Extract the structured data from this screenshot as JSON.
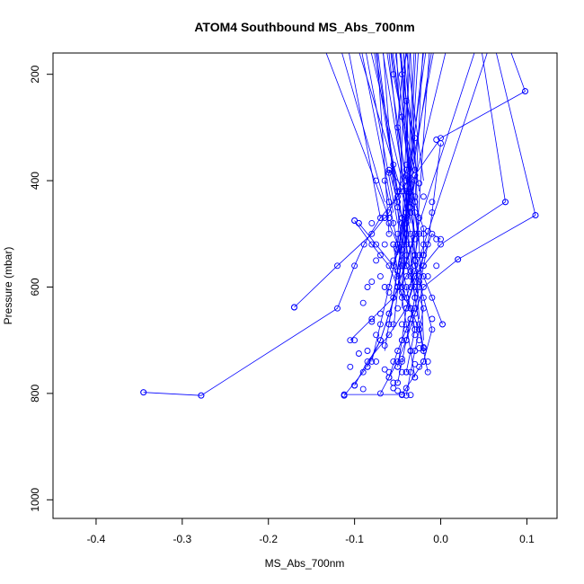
{
  "chart_data": {
    "type": "line",
    "title": "ATOM4 Southbound MS_Abs_700nm",
    "xlabel": "MS_Abs_700nm",
    "ylabel": "Pressure (mbar)",
    "xlim": [
      -0.45,
      0.135
    ],
    "ylim": [
      1035,
      160
    ],
    "y_inverted": true,
    "x_ticks": [
      -0.4,
      -0.3,
      -0.2,
      -0.1,
      0.0,
      0.1
    ],
    "x_tick_labels": [
      "-0.4",
      "-0.3",
      "-0.2",
      "-0.1",
      "0.0",
      "0.1"
    ],
    "y_ticks": [
      200,
      400,
      600,
      800,
      1000
    ],
    "y_tick_labels": [
      "200",
      "400",
      "600",
      "800",
      "1000"
    ],
    "grid": false,
    "series_color": "#0000ff",
    "series": [
      {
        "x": [
          -0.345,
          -0.278,
          -0.12,
          -0.1,
          -0.089,
          -0.07,
          -0.05,
          -0.03,
          -0.045,
          -0.055,
          -0.06,
          -0.08,
          -0.095,
          -0.11
        ],
        "y": [
          798,
          804,
          640,
          560,
          520,
          470,
          430,
          380,
          280,
          200,
          130,
          130,
          130,
          130
        ]
      },
      {
        "x": [
          -0.112,
          -0.09,
          -0.07,
          -0.06,
          -0.05,
          -0.04,
          -0.03,
          -0.04,
          -0.05,
          -0.045,
          -0.035
        ],
        "y": [
          804,
          760,
          700,
          650,
          600,
          550,
          500,
          400,
          300,
          200,
          130
        ]
      },
      {
        "x": [
          -0.17,
          -0.12,
          -0.08,
          -0.06,
          -0.05,
          -0.04,
          -0.03,
          -0.04,
          -0.05
        ],
        "y": [
          638,
          560,
          500,
          460,
          420,
          380,
          320,
          250,
          130
        ]
      },
      {
        "x": [
          0.11,
          0.02,
          -0.02,
          -0.03,
          -0.04,
          -0.05,
          -0.06,
          -0.07
        ],
        "y": [
          465,
          548,
          600,
          650,
          700,
          740,
          770,
          800
        ]
      },
      {
        "x": [
          0.075,
          0.0,
          -0.03,
          -0.04,
          -0.045,
          -0.05
        ],
        "y": [
          440,
          520,
          580,
          640,
          700,
          750
        ]
      },
      {
        "x": [
          0.098,
          0.0,
          -0.03,
          -0.04,
          -0.05,
          -0.06,
          -0.07,
          -0.08
        ],
        "y": [
          232,
          320,
          390,
          460,
          530,
          600,
          670,
          740
        ]
      },
      {
        "x": [
          -0.112,
          -0.045,
          -0.02,
          -0.01,
          -0.02,
          -0.03,
          -0.04,
          -0.05,
          -0.06
        ],
        "y": [
          802,
          802,
          740,
          680,
          620,
          560,
          500,
          440,
          380
        ]
      },
      {
        "x": [
          -0.1,
          -0.085,
          -0.06,
          -0.04,
          -0.03,
          -0.02,
          -0.02,
          -0.03,
          -0.04
        ],
        "y": [
          785,
          740,
          690,
          640,
          590,
          540,
          490,
          440,
          390
        ]
      },
      {
        "x": [
          -0.105,
          -0.08,
          -0.055,
          -0.04,
          -0.03,
          -0.025,
          -0.03,
          -0.04,
          -0.06
        ],
        "y": [
          700,
          660,
          620,
          580,
          540,
          500,
          460,
          420,
          380
        ]
      },
      {
        "x": [
          -0.1,
          -0.08,
          -0.06,
          -0.05,
          -0.035,
          -0.03,
          -0.035,
          -0.04
        ],
        "y": [
          475,
          520,
          560,
          600,
          640,
          680,
          720,
          760
        ]
      },
      {
        "x": [
          -0.095,
          -0.075,
          -0.055,
          -0.045,
          -0.035,
          -0.025,
          -0.02,
          -0.015
        ],
        "y": [
          480,
          520,
          560,
          600,
          640,
          680,
          720,
          760
        ]
      },
      {
        "x": [
          -0.04,
          -0.035,
          -0.03,
          -0.025,
          -0.02,
          -0.03,
          -0.04,
          -0.05,
          -0.06
        ],
        "y": [
          804,
          760,
          720,
          680,
          640,
          600,
          560,
          520,
          480
        ]
      },
      {
        "x": [
          -0.06,
          -0.05,
          -0.04,
          -0.03,
          -0.025,
          -0.02,
          -0.015,
          -0.01,
          0.0
        ],
        "y": [
          770,
          720,
          680,
          640,
          600,
          560,
          520,
          460,
          330
        ]
      },
      {
        "x": [
          -0.085,
          -0.07,
          -0.06,
          -0.05,
          -0.045,
          -0.04,
          -0.035,
          -0.03
        ],
        "y": [
          750,
          700,
          650,
          600,
          550,
          500,
          450,
          400
        ]
      },
      {
        "x": [
          -0.065,
          -0.06,
          -0.055,
          -0.05,
          -0.045,
          -0.04,
          -0.035,
          -0.03
        ],
        "y": [
          400,
          440,
          480,
          520,
          560,
          600,
          640,
          680
        ]
      },
      {
        "x": [
          -0.02,
          -0.025,
          -0.03,
          -0.035,
          -0.04,
          -0.045,
          -0.05,
          -0.055
        ],
        "y": [
          715,
          670,
          620,
          570,
          520,
          470,
          420,
          370
        ]
      },
      {
        "x": [
          -0.05,
          -0.045,
          -0.04,
          -0.035,
          -0.03,
          -0.025,
          -0.02,
          -0.01,
          0.0
        ],
        "y": [
          780,
          740,
          700,
          660,
          620,
          580,
          540,
          500,
          510
        ]
      },
      {
        "x": [
          0.002,
          -0.01,
          -0.02,
          -0.03,
          -0.035,
          -0.04
        ],
        "y": [
          670,
          620,
          580,
          540,
          500,
          460
        ]
      },
      {
        "x": [
          -0.06,
          -0.055,
          -0.05,
          -0.045,
          -0.04,
          -0.035
        ],
        "y": [
          670,
          620,
          570,
          520,
          470,
          420
        ]
      },
      {
        "x": [
          -0.03,
          -0.035,
          -0.04,
          -0.045,
          -0.05,
          -0.055
        ],
        "y": [
          770,
          720,
          670,
          620,
          570,
          520
        ]
      }
    ],
    "fan_lines_to_top": [
      [
        -0.06,
        470,
        -0.14,
        130
      ],
      [
        -0.05,
        430,
        -0.08,
        130
      ],
      [
        -0.04,
        400,
        -0.065,
        130
      ],
      [
        -0.035,
        380,
        -0.055,
        130
      ],
      [
        -0.03,
        360,
        -0.045,
        130
      ],
      [
        -0.045,
        500,
        -0.035,
        130
      ],
      [
        -0.04,
        520,
        -0.025,
        130
      ],
      [
        -0.05,
        540,
        -0.015,
        130
      ],
      [
        -0.055,
        560,
        -0.005,
        130
      ],
      [
        -0.06,
        600,
        0.01,
        130
      ],
      [
        -0.045,
        580,
        0.045,
        130
      ],
      [
        -0.04,
        620,
        0.06,
        130
      ],
      [
        -0.065,
        440,
        -0.12,
        130
      ],
      [
        -0.07,
        470,
        -0.11,
        130
      ],
      [
        -0.055,
        460,
        -0.095,
        130
      ],
      [
        -0.05,
        480,
        -0.09,
        130
      ],
      [
        -0.045,
        520,
        -0.075,
        130
      ],
      [
        -0.035,
        480,
        -0.07,
        130
      ],
      [
        -0.03,
        440,
        -0.06,
        130
      ],
      [
        -0.025,
        420,
        -0.05,
        130
      ],
      [
        -0.02,
        400,
        -0.042,
        130
      ],
      [
        -0.04,
        560,
        -0.038,
        130
      ],
      [
        -0.045,
        600,
        -0.03,
        130
      ],
      [
        -0.035,
        600,
        -0.02,
        130
      ],
      [
        -0.03,
        560,
        -0.012,
        130
      ],
      [
        -0.025,
        520,
        -0.058,
        130
      ],
      [
        -0.03,
        500,
        -0.085,
        130
      ],
      [
        -0.04,
        450,
        -0.1,
        130
      ],
      [
        -0.05,
        420,
        -0.078,
        130
      ],
      [
        -0.055,
        410,
        -0.068,
        130
      ],
      [
        -0.045,
        380,
        -0.052,
        130
      ],
      [
        -0.04,
        340,
        -0.048,
        130
      ],
      [
        -0.038,
        320,
        -0.044,
        130
      ],
      [
        0.075,
        440,
        0.045,
        130
      ],
      [
        0.11,
        465,
        0.06,
        130
      ],
      [
        0.098,
        232,
        0.075,
        130
      ],
      [
        -0.06,
        500,
        -0.075,
        130
      ],
      [
        -0.05,
        520,
        -0.04,
        130
      ],
      [
        -0.045,
        640,
        -0.028,
        130
      ],
      [
        -0.055,
        680,
        -0.018,
        130
      ],
      [
        -0.065,
        720,
        -0.008,
        130
      ],
      [
        -0.03,
        620,
        -0.062,
        130
      ],
      [
        -0.025,
        660,
        -0.047,
        130
      ],
      [
        -0.02,
        700,
        -0.036,
        130
      ]
    ],
    "extra_points": [
      [
        -0.345,
        798
      ],
      [
        -0.278,
        804
      ],
      [
        -0.17,
        638
      ],
      [
        0.11,
        465
      ],
      [
        0.075,
        440
      ],
      [
        0.098,
        232
      ],
      [
        0.02,
        548
      ],
      [
        0.002,
        670
      ],
      [
        -0.005,
        510
      ],
      [
        -0.005,
        323
      ],
      [
        -0.1,
        475
      ],
      [
        -0.095,
        480
      ],
      [
        -0.08,
        480
      ],
      [
        -0.075,
        400
      ],
      [
        -0.06,
        385
      ],
      [
        -0.065,
        470
      ],
      [
        -0.06,
        500
      ],
      [
        -0.065,
        520
      ],
      [
        -0.07,
        540
      ],
      [
        -0.07,
        580
      ],
      [
        -0.08,
        590
      ],
      [
        -0.075,
        550
      ],
      [
        -0.06,
        610
      ],
      [
        -0.06,
        670
      ],
      [
        -0.055,
        670
      ],
      [
        -0.08,
        665
      ],
      [
        -0.1,
        700
      ],
      [
        -0.085,
        720
      ],
      [
        -0.095,
        725
      ],
      [
        -0.105,
        750
      ],
      [
        -0.085,
        750
      ],
      [
        -0.09,
        792
      ],
      [
        -0.075,
        740
      ],
      [
        -0.06,
        770
      ],
      [
        -0.055,
        790
      ],
      [
        -0.05,
        795
      ],
      [
        -0.045,
        803
      ],
      [
        -0.035,
        803
      ],
      [
        -0.055,
        780
      ],
      [
        -0.04,
        760
      ],
      [
        -0.03,
        770
      ],
      [
        -0.03,
        745
      ],
      [
        -0.025,
        750
      ],
      [
        -0.02,
        740
      ],
      [
        -0.015,
        740
      ],
      [
        -0.025,
        715
      ],
      [
        -0.02,
        713
      ],
      [
        -0.03,
        690
      ],
      [
        -0.045,
        700
      ],
      [
        -0.045,
        670
      ],
      [
        -0.035,
        660
      ],
      [
        -0.01,
        660
      ],
      [
        -0.03,
        640
      ],
      [
        -0.04,
        620
      ],
      [
        -0.035,
        600
      ],
      [
        -0.025,
        590
      ],
      [
        -0.03,
        570
      ],
      [
        -0.02,
        560
      ],
      [
        -0.015,
        580
      ],
      [
        -0.005,
        560
      ],
      [
        -0.04,
        560
      ],
      [
        -0.045,
        530
      ],
      [
        -0.035,
        520
      ],
      [
        -0.03,
        510
      ],
      [
        -0.02,
        500
      ],
      [
        -0.015,
        495
      ],
      [
        -0.04,
        480
      ],
      [
        -0.045,
        470
      ],
      [
        -0.05,
        450
      ],
      [
        -0.035,
        440
      ],
      [
        -0.03,
        430
      ],
      [
        -0.02,
        430
      ],
      [
        -0.01,
        440
      ],
      [
        -0.045,
        420
      ],
      [
        -0.04,
        410
      ],
      [
        -0.025,
        405
      ],
      [
        -0.04,
        370
      ],
      [
        -0.03,
        390
      ],
      [
        -0.06,
        470
      ],
      [
        -0.05,
        500
      ],
      [
        -0.055,
        550
      ],
      [
        -0.05,
        580
      ],
      [
        -0.045,
        610
      ],
      [
        -0.05,
        640
      ],
      [
        -0.04,
        700
      ],
      [
        -0.035,
        720
      ],
      [
        -0.045,
        735
      ],
      [
        -0.055,
        740
      ],
      [
        -0.065,
        710
      ],
      [
        -0.075,
        690
      ],
      [
        -0.085,
        600
      ],
      [
        -0.09,
        630
      ],
      [
        -0.07,
        650
      ],
      [
        -0.065,
        600
      ],
      [
        -0.055,
        520
      ],
      [
        -0.045,
        480
      ],
      [
        -0.035,
        460
      ],
      [
        -0.025,
        470
      ],
      [
        -0.02,
        520
      ],
      [
        -0.025,
        540
      ],
      [
        -0.03,
        550
      ],
      [
        -0.035,
        580
      ],
      [
        -0.04,
        640
      ],
      [
        -0.03,
        670
      ],
      [
        -0.025,
        700
      ],
      [
        -0.045,
        760
      ],
      [
        -0.05,
        750
      ],
      [
        -0.06,
        760
      ],
      [
        -0.065,
        755
      ],
      [
        -0.04,
        790
      ],
      [
        -0.1,
        785
      ],
      [
        -0.112,
        804
      ],
      [
        -0.04,
        540
      ],
      [
        -0.045,
        560
      ]
    ]
  }
}
